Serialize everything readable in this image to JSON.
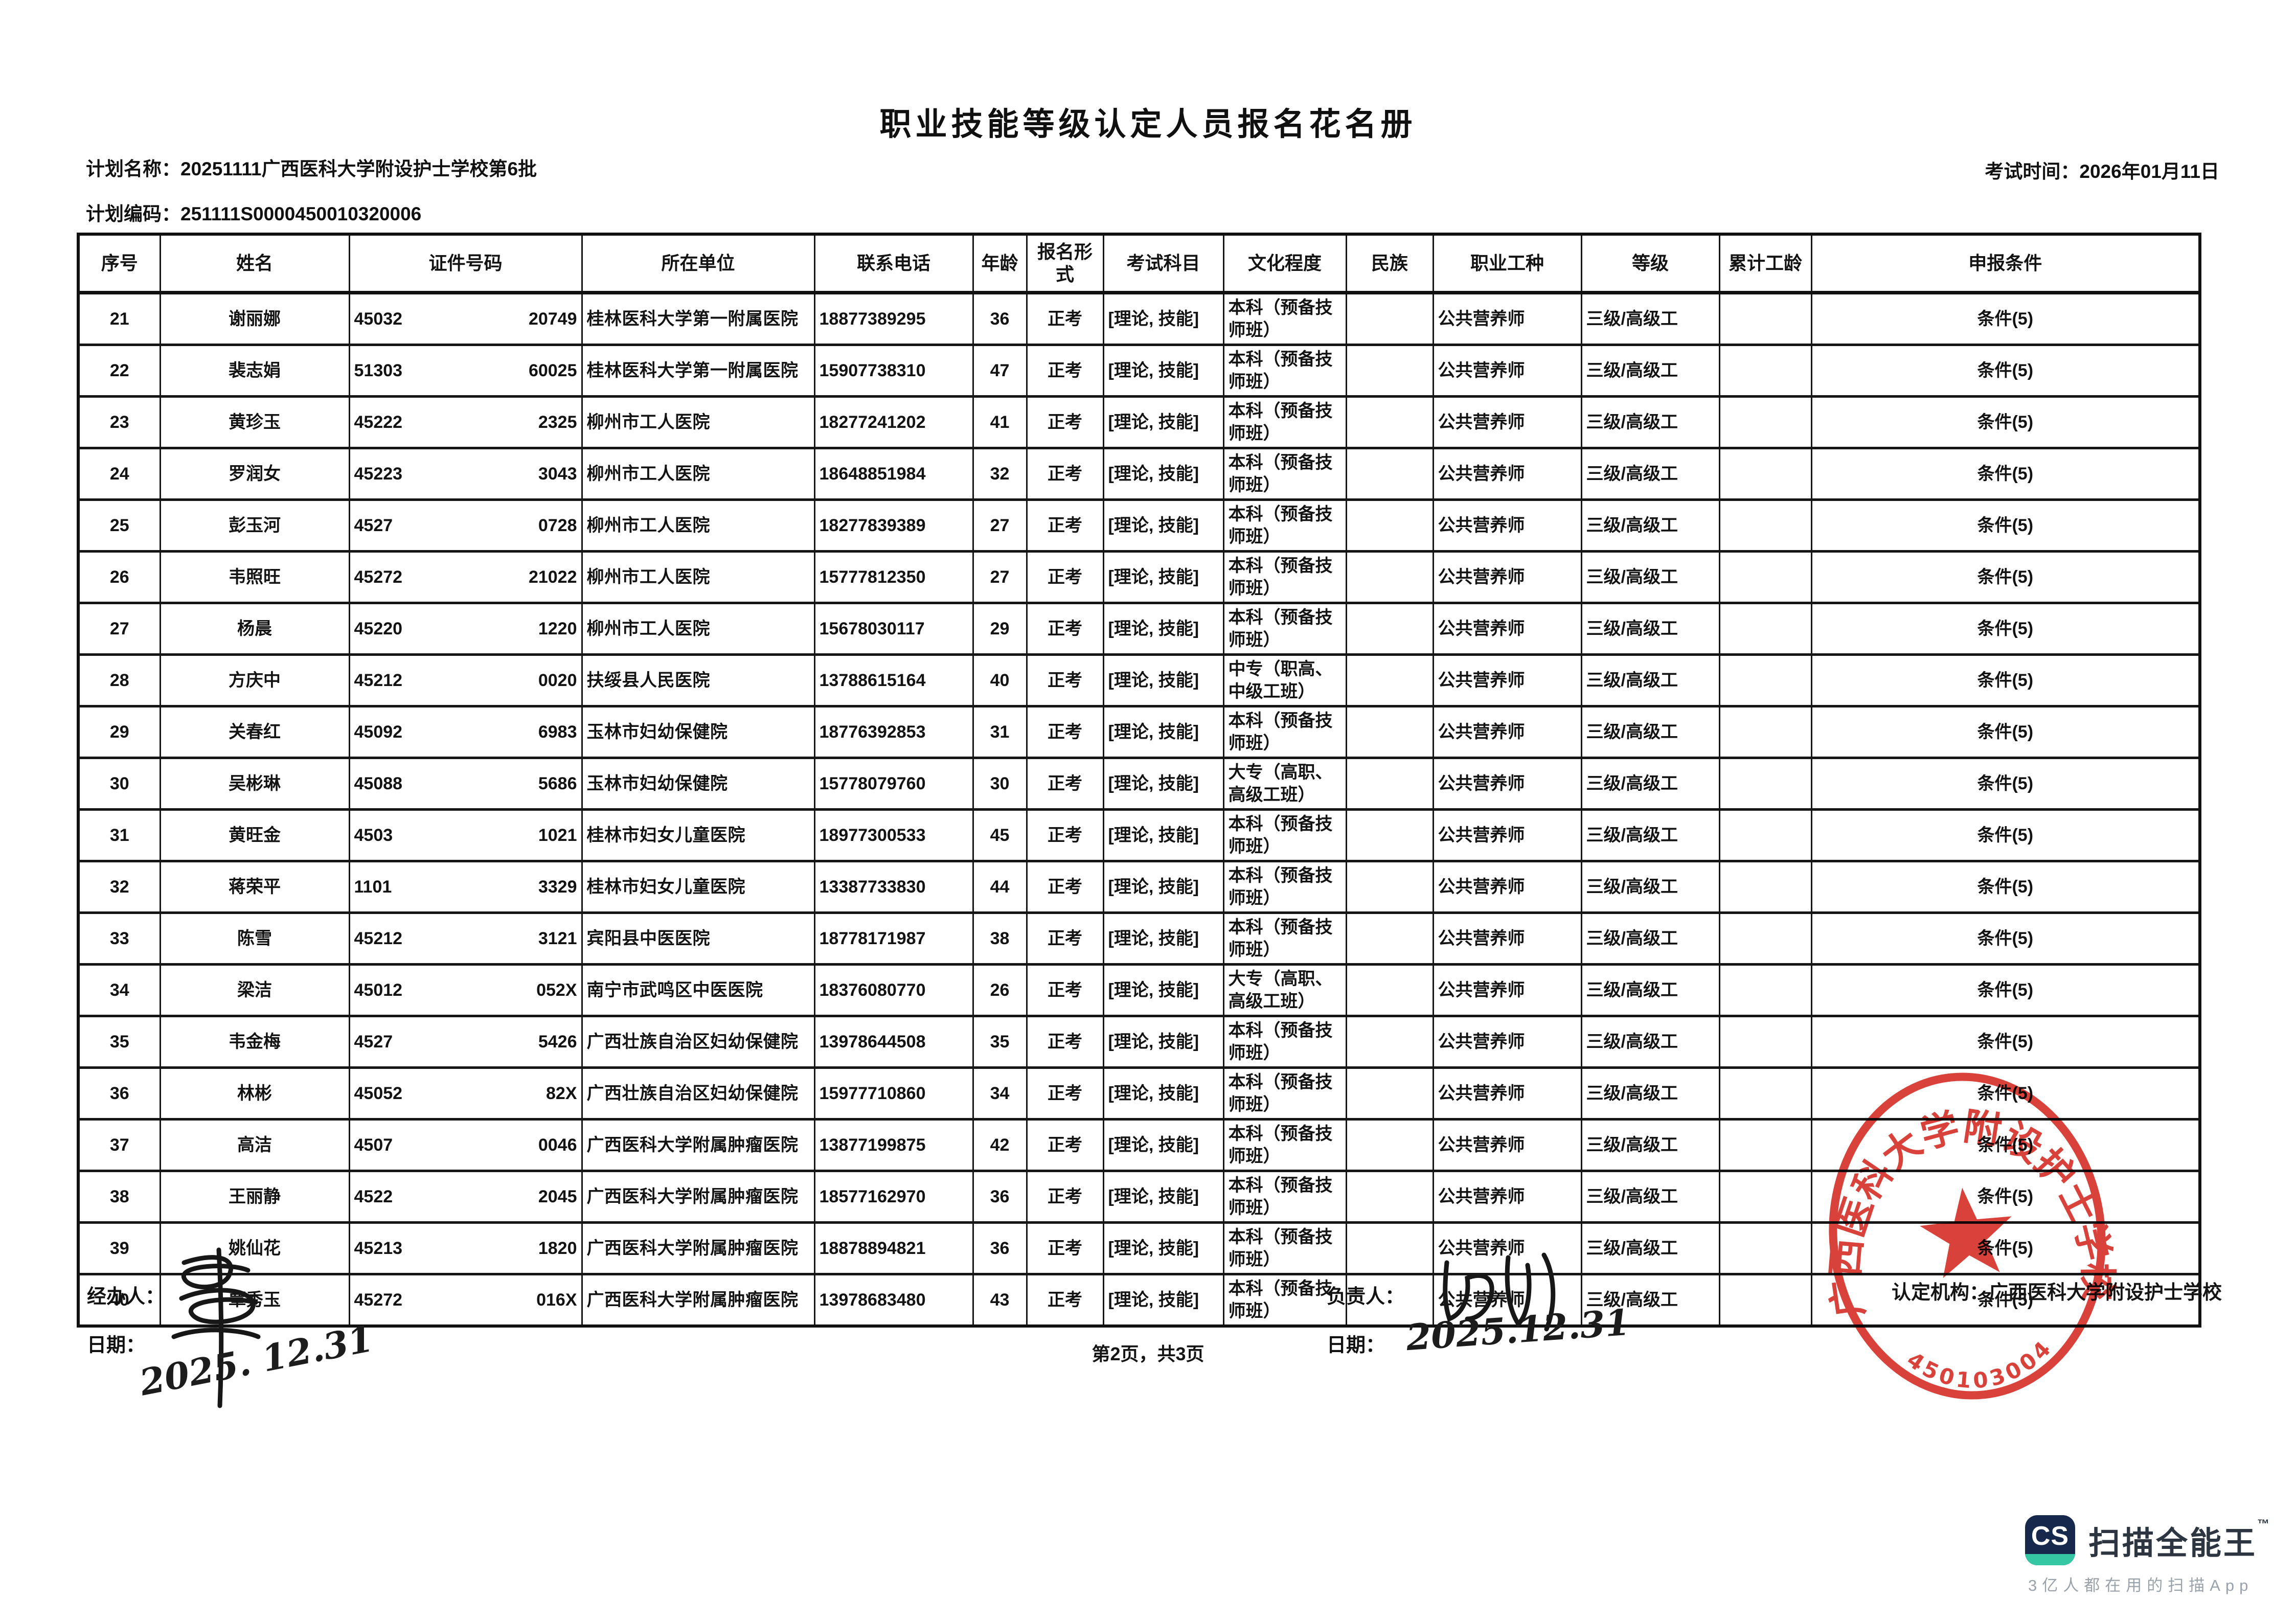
{
  "title": "职业技能等级认定人员报名花名册",
  "header": {
    "plan_name_label": "计划名称：",
    "plan_name": "20251111广西医科大学附设护士学校第6批",
    "plan_code_label": "计划编码：",
    "plan_code": "251111S0000450010320006",
    "exam_time_label": "考试时间：",
    "exam_time": "2026年01月11日"
  },
  "table": {
    "columns": [
      "序号",
      "姓名",
      "证件号码",
      "所在单位",
      "联系电话",
      "年龄",
      "报名形式",
      "考试科目",
      "文化程度",
      "民族",
      "职业工种",
      "等级",
      "累计工龄",
      "申报条件"
    ],
    "rows": [
      {
        "no": "21",
        "name": "谢丽娜",
        "id_prefix": "45032",
        "id_suffix": "20749",
        "unit": "桂林医科大学第一附属医院",
        "phone": "18877389295",
        "age": "36",
        "form": "正考",
        "subjects": "[理论, 技能]",
        "education": "本科（预备技师班）",
        "ethnicity": "",
        "occupation": "公共营养师",
        "level": "三级/高级工",
        "seniority": "",
        "condition": "条件(5)"
      },
      {
        "no": "22",
        "name": "裴志娟",
        "id_prefix": "51303",
        "id_suffix": "60025",
        "unit": "桂林医科大学第一附属医院",
        "phone": "15907738310",
        "age": "47",
        "form": "正考",
        "subjects": "[理论, 技能]",
        "education": "本科（预备技师班）",
        "ethnicity": "",
        "occupation": "公共营养师",
        "level": "三级/高级工",
        "seniority": "",
        "condition": "条件(5)"
      },
      {
        "no": "23",
        "name": "黄珍玉",
        "id_prefix": "45222",
        "id_suffix": "2325",
        "unit": "柳州市工人医院",
        "phone": "18277241202",
        "age": "41",
        "form": "正考",
        "subjects": "[理论, 技能]",
        "education": "本科（预备技师班）",
        "ethnicity": "",
        "occupation": "公共营养师",
        "level": "三级/高级工",
        "seniority": "",
        "condition": "条件(5)"
      },
      {
        "no": "24",
        "name": "罗润女",
        "id_prefix": "45223",
        "id_suffix": "3043",
        "unit": "柳州市工人医院",
        "phone": "18648851984",
        "age": "32",
        "form": "正考",
        "subjects": "[理论, 技能]",
        "education": "本科（预备技师班）",
        "ethnicity": "",
        "occupation": "公共营养师",
        "level": "三级/高级工",
        "seniority": "",
        "condition": "条件(5)"
      },
      {
        "no": "25",
        "name": "彭玉河",
        "id_prefix": "4527",
        "id_suffix": "0728",
        "unit": "柳州市工人医院",
        "phone": "18277839389",
        "age": "27",
        "form": "正考",
        "subjects": "[理论, 技能]",
        "education": "本科（预备技师班）",
        "ethnicity": "",
        "occupation": "公共营养师",
        "level": "三级/高级工",
        "seniority": "",
        "condition": "条件(5)"
      },
      {
        "no": "26",
        "name": "韦照旺",
        "id_prefix": "45272",
        "id_suffix": "21022",
        "unit": "柳州市工人医院",
        "phone": "15777812350",
        "age": "27",
        "form": "正考",
        "subjects": "[理论, 技能]",
        "education": "本科（预备技师班）",
        "ethnicity": "",
        "occupation": "公共营养师",
        "level": "三级/高级工",
        "seniority": "",
        "condition": "条件(5)"
      },
      {
        "no": "27",
        "name": "杨晨",
        "id_prefix": "45220",
        "id_suffix": "1220",
        "unit": "柳州市工人医院",
        "phone": "15678030117",
        "age": "29",
        "form": "正考",
        "subjects": "[理论, 技能]",
        "education": "本科（预备技师班）",
        "ethnicity": "",
        "occupation": "公共营养师",
        "level": "三级/高级工",
        "seniority": "",
        "condition": "条件(5)"
      },
      {
        "no": "28",
        "name": "方庆中",
        "id_prefix": "45212",
        "id_suffix": "0020",
        "unit": "扶绥县人民医院",
        "phone": "13788615164",
        "age": "40",
        "form": "正考",
        "subjects": "[理论, 技能]",
        "education": "中专（职高、中级工班）",
        "ethnicity": "",
        "occupation": "公共营养师",
        "level": "三级/高级工",
        "seniority": "",
        "condition": "条件(5)"
      },
      {
        "no": "29",
        "name": "关春红",
        "id_prefix": "45092",
        "id_suffix": "6983",
        "unit": "玉林市妇幼保健院",
        "phone": "18776392853",
        "age": "31",
        "form": "正考",
        "subjects": "[理论, 技能]",
        "education": "本科（预备技师班）",
        "ethnicity": "",
        "occupation": "公共营养师",
        "level": "三级/高级工",
        "seniority": "",
        "condition": "条件(5)"
      },
      {
        "no": "30",
        "name": "吴彬琳",
        "id_prefix": "45088",
        "id_suffix": "5686",
        "unit": "玉林市妇幼保健院",
        "phone": "15778079760",
        "age": "30",
        "form": "正考",
        "subjects": "[理论, 技能]",
        "education": "大专（高职、高级工班）",
        "ethnicity": "",
        "occupation": "公共营养师",
        "level": "三级/高级工",
        "seniority": "",
        "condition": "条件(5)"
      },
      {
        "no": "31",
        "name": "黄旺金",
        "id_prefix": "4503",
        "id_suffix": "1021",
        "unit": "桂林市妇女儿童医院",
        "phone": "18977300533",
        "age": "45",
        "form": "正考",
        "subjects": "[理论, 技能]",
        "education": "本科（预备技师班）",
        "ethnicity": "",
        "occupation": "公共营养师",
        "level": "三级/高级工",
        "seniority": "",
        "condition": "条件(5)"
      },
      {
        "no": "32",
        "name": "蒋荣平",
        "id_prefix": "1101",
        "id_suffix": "3329",
        "unit": "桂林市妇女儿童医院",
        "phone": "13387733830",
        "age": "44",
        "form": "正考",
        "subjects": "[理论, 技能]",
        "education": "本科（预备技师班）",
        "ethnicity": "",
        "occupation": "公共营养师",
        "level": "三级/高级工",
        "seniority": "",
        "condition": "条件(5)"
      },
      {
        "no": "33",
        "name": "陈雪",
        "id_prefix": "45212",
        "id_suffix": "3121",
        "unit": "宾阳县中医医院",
        "phone": "18778171987",
        "age": "38",
        "form": "正考",
        "subjects": "[理论, 技能]",
        "education": "本科（预备技师班）",
        "ethnicity": "",
        "occupation": "公共营养师",
        "level": "三级/高级工",
        "seniority": "",
        "condition": "条件(5)"
      },
      {
        "no": "34",
        "name": "梁洁",
        "id_prefix": "45012",
        "id_suffix": "052X",
        "unit": "南宁市武鸣区中医医院",
        "phone": "18376080770",
        "age": "26",
        "form": "正考",
        "subjects": "[理论, 技能]",
        "education": "大专（高职、高级工班）",
        "ethnicity": "",
        "occupation": "公共营养师",
        "level": "三级/高级工",
        "seniority": "",
        "condition": "条件(5)"
      },
      {
        "no": "35",
        "name": "韦金梅",
        "id_prefix": "4527",
        "id_suffix": "5426",
        "unit": "广西壮族自治区妇幼保健院",
        "phone": "13978644508",
        "age": "35",
        "form": "正考",
        "subjects": "[理论, 技能]",
        "education": "本科（预备技师班）",
        "ethnicity": "",
        "occupation": "公共营养师",
        "level": "三级/高级工",
        "seniority": "",
        "condition": "条件(5)"
      },
      {
        "no": "36",
        "name": "林彬",
        "id_prefix": "45052",
        "id_suffix": "82X",
        "unit": "广西壮族自治区妇幼保健院",
        "phone": "15977710860",
        "age": "34",
        "form": "正考",
        "subjects": "[理论, 技能]",
        "education": "本科（预备技师班）",
        "ethnicity": "",
        "occupation": "公共营养师",
        "level": "三级/高级工",
        "seniority": "",
        "condition": "条件(5)"
      },
      {
        "no": "37",
        "name": "高洁",
        "id_prefix": "4507",
        "id_suffix": "0046",
        "unit": "广西医科大学附属肿瘤医院",
        "phone": "13877199875",
        "age": "42",
        "form": "正考",
        "subjects": "[理论, 技能]",
        "education": "本科（预备技师班）",
        "ethnicity": "",
        "occupation": "公共营养师",
        "level": "三级/高级工",
        "seniority": "",
        "condition": "条件(5)"
      },
      {
        "no": "38",
        "name": "王丽静",
        "id_prefix": "4522",
        "id_suffix": "2045",
        "unit": "广西医科大学附属肿瘤医院",
        "phone": "18577162970",
        "age": "36",
        "form": "正考",
        "subjects": "[理论, 技能]",
        "education": "本科（预备技师班）",
        "ethnicity": "",
        "occupation": "公共营养师",
        "level": "三级/高级工",
        "seniority": "",
        "condition": "条件(5)"
      },
      {
        "no": "39",
        "name": "姚仙花",
        "id_prefix": "45213",
        "id_suffix": "1820",
        "unit": "广西医科大学附属肿瘤医院",
        "phone": "18878894821",
        "age": "36",
        "form": "正考",
        "subjects": "[理论, 技能]",
        "education": "本科（预备技师班）",
        "ethnicity": "",
        "occupation": "公共营养师",
        "level": "三级/高级工",
        "seniority": "",
        "condition": "条件(5)"
      },
      {
        "no": "40",
        "name": "覃秀玉",
        "id_prefix": "45272",
        "id_suffix": "016X",
        "unit": "广西医科大学附属肿瘤医院",
        "phone": "13978683480",
        "age": "43",
        "form": "正考",
        "subjects": "[理论, 技能]",
        "education": "本科（预备技师班）",
        "ethnicity": "",
        "occupation": "公共营养师",
        "level": "三级/高级工",
        "seniority": "",
        "condition": "条件(5)"
      }
    ]
  },
  "footer": {
    "handler_label": "经办人：",
    "handler_date_label": "日期：",
    "handler_date_value": "2025. 12.31",
    "manager_label": "负责人：",
    "manager_date_label": "日期：",
    "manager_date_value": "2025.12.31",
    "org_label": "认定机构：",
    "org_value": "广西医科大学附设护士学校",
    "page_info": "第2页，共3页"
  },
  "stamp": {
    "ring_text": "广西医科大学附设护士学校",
    "number": "4501030047555",
    "color": "#d3281f"
  },
  "scanner_mark": {
    "badge_text": "CS",
    "app_name": "扫描全能王",
    "trademark": "™",
    "tagline": "3亿人都在用的扫描App",
    "badge_color": "#16294d",
    "accent_color": "#35c7a4"
  }
}
